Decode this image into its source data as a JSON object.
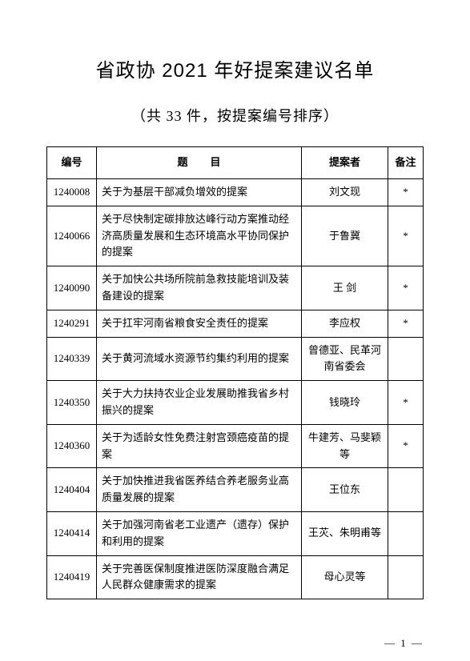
{
  "title": "省政协 2021 年好提案建议名单",
  "subtitle": "（共 33 件，按提案编号排序）",
  "columns": {
    "id": "编号",
    "topic": "题目",
    "proposer": "提案者",
    "note": "备注"
  },
  "rows": [
    {
      "id": "1240008",
      "topic": "关于为基层干部减负增效的提案",
      "proposer": "刘文现",
      "note": "*"
    },
    {
      "id": "1240066",
      "topic": "关于尽快制定碳排放达峰行动方案推动经济高质量发展和生态环境高水平协同保护的提案",
      "proposer": "于鲁冀",
      "note": "*"
    },
    {
      "id": "1240090",
      "topic": "关于加快公共场所院前急救技能培训及装备建设的提案",
      "proposer": "王 剑",
      "note": "*"
    },
    {
      "id": "1240291",
      "topic": "关于扛牢河南省粮食安全责任的提案",
      "proposer": "李应权",
      "note": "*"
    },
    {
      "id": "1240339",
      "topic": "关于黄河流域水资源节约集约利用的提案",
      "proposer": "曾德亚、民革河南省委会",
      "note": ""
    },
    {
      "id": "1240350",
      "topic": "关于大力扶持农业企业发展助推我省乡村振兴的提案",
      "proposer": "钱晓玲",
      "note": "*"
    },
    {
      "id": "1240360",
      "topic": "关于为适龄女性免费注射宫颈癌疫苗的提案",
      "proposer": "牛建芳、马斐颖等",
      "note": "*"
    },
    {
      "id": "1240404",
      "topic": "关于加快推进我省医养结合养老服务业高质量发展的提案",
      "proposer": "王位东",
      "note": ""
    },
    {
      "id": "1240414",
      "topic": "关于加强河南省老工业遗产（遗存）保护和利用的提案",
      "proposer": "王苂、朱明甫等",
      "note": ""
    },
    {
      "id": "1240419",
      "topic": "关于完善医保制度推进医防深度融合满足人民群众健康需求的提案",
      "proposer": "母心灵等",
      "note": ""
    }
  ],
  "page_number": "— 1 —"
}
